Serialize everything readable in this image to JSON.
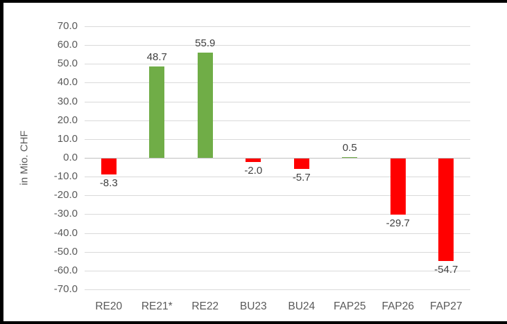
{
  "chart_data": {
    "type": "bar",
    "title": "",
    "xlabel": "",
    "ylabel": "in Mio. CHF",
    "categories": [
      "RE20",
      "RE21*",
      "RE22",
      "BU23",
      "BU24",
      "FAP25",
      "FAP26",
      "FAP27"
    ],
    "values": [
      -8.3,
      48.7,
      55.9,
      -2.0,
      -5.7,
      0.5,
      -29.7,
      -54.7
    ],
    "value_labels": [
      "-8.3",
      "48.7",
      "55.9",
      "-2.0",
      "-5.7",
      "0.5",
      "-29.7",
      "-54.7"
    ],
    "ylim": [
      -70,
      70
    ],
    "ytick_step": 10,
    "ytick_labels": [
      "70.0",
      "60.0",
      "50.0",
      "40.0",
      "30.0",
      "20.0",
      "10.0",
      "0.0",
      "-10.0",
      "-20.0",
      "-30.0",
      "-40.0",
      "-50.0",
      "-60.0",
      "-70.0"
    ],
    "grid": true,
    "legend": false,
    "colors": {
      "positive_bar": "#70AD47",
      "negative_bar": "#FF0000",
      "gridline": "#D9D9D9",
      "zero_line": "#BFBFBF",
      "axis_text": "#595959",
      "value_text": "#404040",
      "frame_border": "#000000",
      "background": "#FFFFFF"
    }
  }
}
